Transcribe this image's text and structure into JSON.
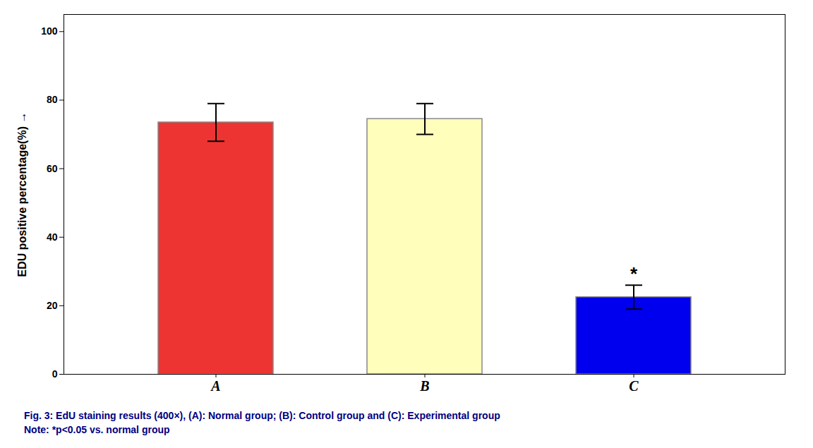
{
  "chart_data": {
    "type": "bar",
    "categories": [
      "A",
      "B",
      "C"
    ],
    "values": [
      73.5,
      74.5,
      22.5
    ],
    "errors": [
      5.5,
      4.5,
      3.5
    ],
    "colors": [
      "#EE3333",
      "#FFFFBB",
      "#0000EE"
    ],
    "ylabel": "EDU positive percentage(%)",
    "ylim": [
      0,
      105
    ],
    "yticks": [
      0,
      20,
      40,
      60,
      80,
      100
    ],
    "grid": false,
    "annotations": [
      {
        "category": "C",
        "text": "*"
      }
    ],
    "caption": [
      "Fig. 3: EdU staining results (400×), (A): Normal group; (B): Control group and (C): Experimental group",
      "Note: *p<0.05 vs. normal group"
    ]
  }
}
